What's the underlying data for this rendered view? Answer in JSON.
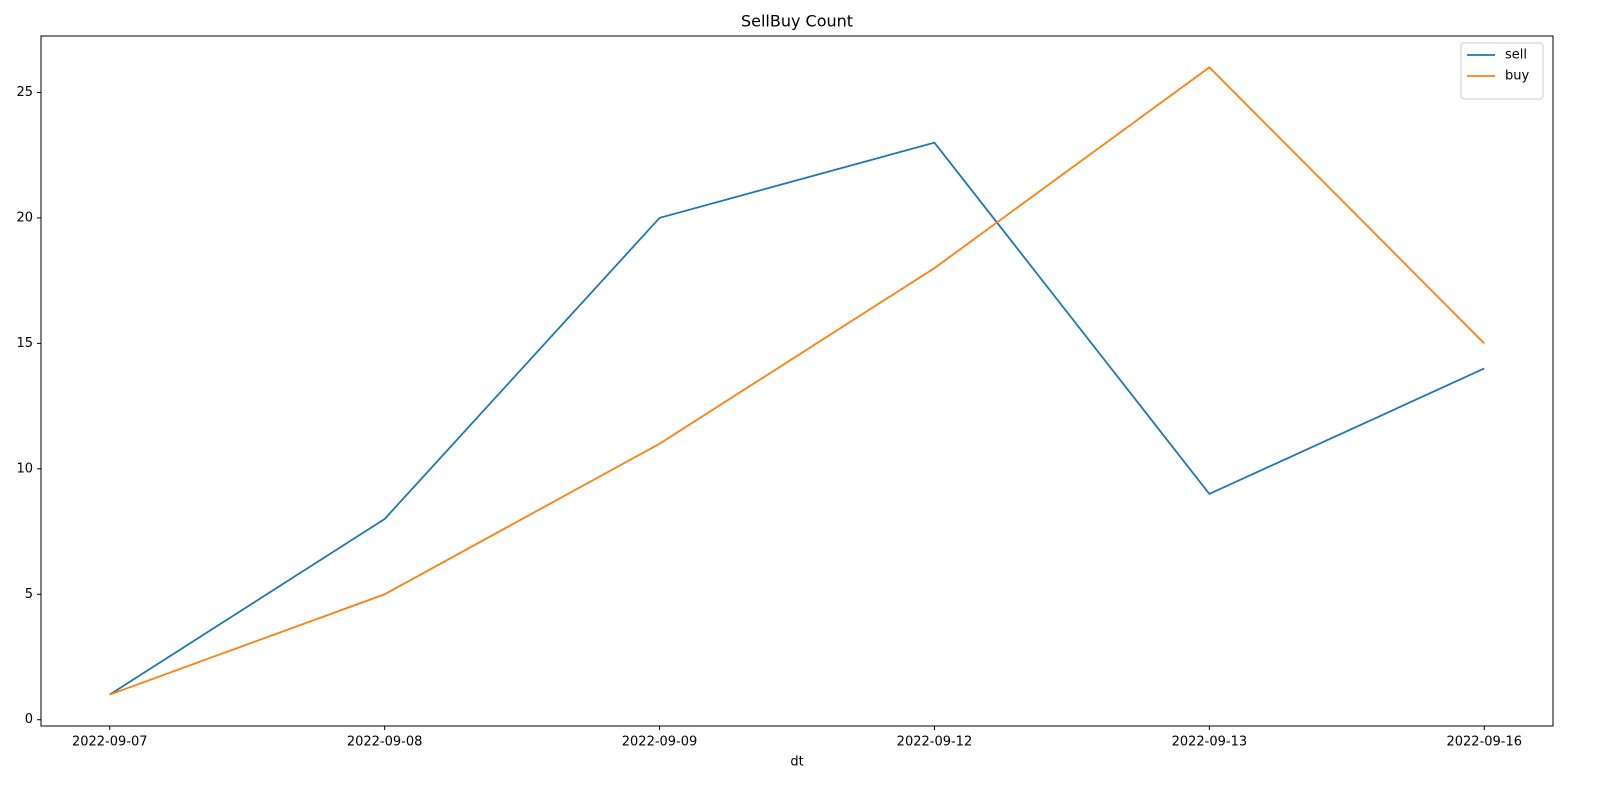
{
  "chart_data": {
    "type": "line",
    "title": "SellBuy Count",
    "x_label": "dt",
    "categories": [
      "2022-09-07",
      "2022-09-08",
      "2022-09-09",
      "2022-09-12",
      "2022-09-13",
      "2022-09-16"
    ],
    "series": [
      {
        "name": "sell",
        "color": "#1f77b4",
        "values": [
          1,
          8,
          20,
          23,
          9,
          14
        ]
      },
      {
        "name": "buy",
        "color": "#ff7f0e",
        "values": [
          1,
          5,
          11,
          18,
          26,
          15
        ]
      }
    ],
    "ylim": [
      -0.25,
      27.25
    ],
    "yticks": [
      0,
      5,
      10,
      15,
      20,
      25
    ],
    "grid": false,
    "legend": "upper right"
  }
}
